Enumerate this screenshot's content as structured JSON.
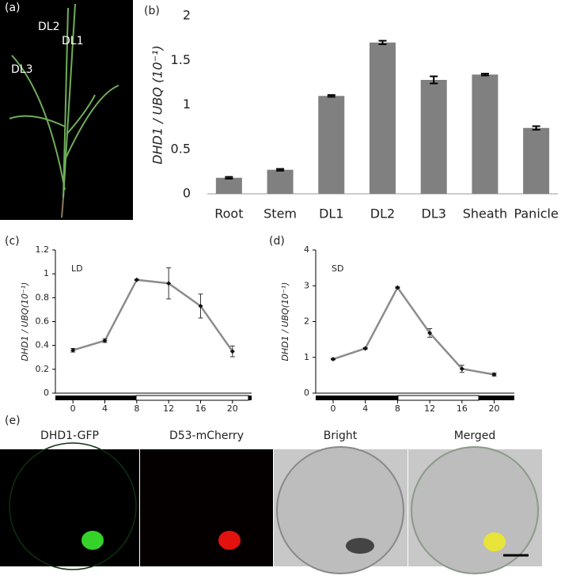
{
  "panel_labels": [
    "(a)",
    "(b)",
    "(c)",
    "(d)",
    "(e)"
  ],
  "plant_labels": [
    "DL2",
    "DL1",
    "DL3"
  ],
  "image_labels": [
    "DHD1-GFP",
    "D53-mCherry",
    "Bright",
    "Merged"
  ],
  "chart_data": [
    {
      "type": "bar",
      "y_label": "DHD1 / UBQ (10⁻¹)",
      "categories": [
        "Root",
        "Stem",
        "DL1",
        "DL2",
        "DL3",
        "Sheath",
        "Panicle"
      ],
      "values": [
        0.18,
        0.27,
        1.1,
        1.7,
        1.28,
        1.34,
        0.74
      ],
      "errors": [
        0.01,
        0.01,
        0.01,
        0.02,
        0.04,
        0.01,
        0.02
      ],
      "color": "#808080",
      "ylim": [
        0,
        2
      ],
      "yticks": [
        0,
        0.5,
        1,
        1.5,
        2
      ]
    },
    {
      "type": "line",
      "annotation": "LD",
      "y_label": "DHD1 / UBQ(10⁻¹)",
      "x": [
        0,
        4,
        8,
        12,
        16,
        20
      ],
      "series": [
        {
          "color": "#8c8c8c",
          "values": [
            0.36,
            0.44,
            0.95,
            0.92,
            0.73,
            0.35
          ],
          "errors": [
            0.015,
            0.015,
            0.005,
            0.13,
            0.1,
            0.045
          ]
        }
      ],
      "xlim": [
        -2.2,
        22.4
      ],
      "xticks": [
        0,
        4,
        8,
        12,
        16,
        20
      ],
      "ylim": [
        0,
        1.2
      ],
      "yticks": [
        0,
        0.2,
        0.4,
        0.6,
        0.8,
        1,
        1.2
      ]
    },
    {
      "type": "line",
      "annotation": "SD",
      "y_label": "DHD1 / UBQ(10⁻¹)",
      "x": [
        0,
        4,
        8,
        12,
        16,
        20
      ],
      "series": [
        {
          "color": "#8c8c8c",
          "values": [
            0.95,
            1.25,
            2.95,
            1.68,
            0.68,
            0.52
          ],
          "errors": [
            0.02,
            0.02,
            0.02,
            0.12,
            0.1,
            0.04
          ]
        }
      ],
      "xlim": [
        -2.16,
        22.5
      ],
      "xticks": [
        0,
        4,
        8,
        12,
        16,
        20
      ],
      "ylim": [
        0,
        4
      ],
      "yticks": [
        0,
        1,
        2,
        3,
        4
      ]
    }
  ]
}
